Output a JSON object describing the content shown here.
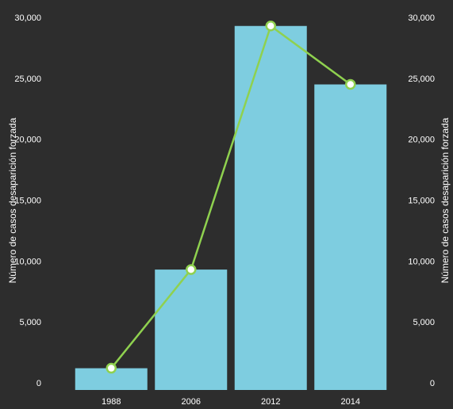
{
  "chart_data": {
    "type": "bar",
    "categories": [
      "1988",
      "2006",
      "2012",
      "2014"
    ],
    "series": [
      {
        "type": "bar",
        "values": [
          1200,
          9300,
          29300,
          24500
        ],
        "color": "#7ecde0"
      },
      {
        "type": "line",
        "values": [
          1200,
          9300,
          29300,
          24500
        ],
        "color": "#8fd14f"
      }
    ],
    "ylabel": "Número de casos desaparición forzada",
    "y2label": "Número de casos desaparición forzada",
    "ylim": [
      0,
      30000
    ],
    "yticks": [
      "0",
      "5,000",
      "10,000",
      "15,000",
      "20,000",
      "25,000",
      "30,000"
    ],
    "grid": false,
    "background": "#2d2d2d"
  }
}
